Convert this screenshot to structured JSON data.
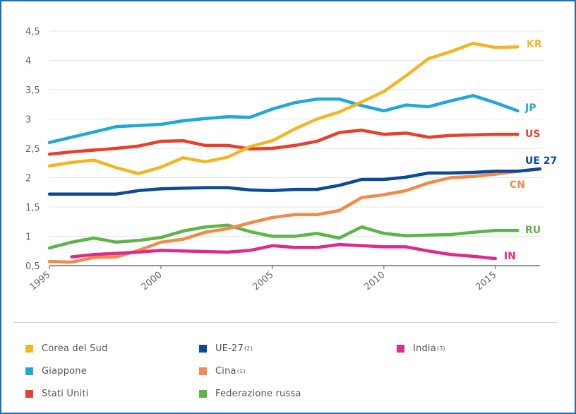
{
  "chart_data": {
    "type": "line",
    "x_ticks": [
      1995,
      2000,
      2005,
      2010,
      2015
    ],
    "y_ticks": [
      0.5,
      1,
      1.5,
      2,
      2.5,
      3,
      3.5,
      4,
      4.5
    ],
    "y_tick_labels": [
      "0,5",
      "1",
      "1,5",
      "2",
      "2,5",
      "3",
      "3,5",
      "4",
      "4,5"
    ],
    "xlim": [
      1995,
      2017
    ],
    "ylim": [
      0.5,
      4.5
    ],
    "grid": "horizontal",
    "series": [
      {
        "name": "Corea del Sud",
        "end_label": "KR",
        "color": "#f5b523",
        "x": [
          1995,
          1996,
          1997,
          1998,
          1999,
          2000,
          2001,
          2002,
          2003,
          2004,
          2005,
          2006,
          2007,
          2008,
          2009,
          2010,
          2011,
          2012,
          2013,
          2014,
          2015,
          2016
        ],
        "y": [
          2.2,
          2.26,
          2.3,
          2.17,
          2.07,
          2.18,
          2.34,
          2.27,
          2.35,
          2.53,
          2.63,
          2.83,
          3.0,
          3.12,
          3.29,
          3.47,
          3.74,
          4.03,
          4.15,
          4.29,
          4.22,
          4.23
        ]
      },
      {
        "name": "Giappone",
        "end_label": "JP",
        "color": "#1fa8d8",
        "x": [
          1995,
          1996,
          1997,
          1998,
          1999,
          2000,
          2001,
          2002,
          2003,
          2004,
          2005,
          2006,
          2007,
          2008,
          2009,
          2010,
          2011,
          2012,
          2013,
          2014,
          2015,
          2016
        ],
        "y": [
          2.6,
          2.69,
          2.78,
          2.87,
          2.89,
          2.91,
          2.97,
          3.01,
          3.04,
          3.03,
          3.17,
          3.28,
          3.34,
          3.34,
          3.23,
          3.14,
          3.24,
          3.21,
          3.31,
          3.4,
          3.28,
          3.14
        ]
      },
      {
        "name": "Stati Uniti",
        "end_label": "US",
        "color": "#e5412d",
        "x": [
          1995,
          1996,
          1997,
          1998,
          1999,
          2000,
          2001,
          2002,
          2003,
          2004,
          2005,
          2006,
          2007,
          2008,
          2009,
          2010,
          2011,
          2012,
          2013,
          2014,
          2015,
          2016
        ],
        "y": [
          2.4,
          2.44,
          2.47,
          2.5,
          2.54,
          2.62,
          2.63,
          2.55,
          2.55,
          2.49,
          2.5,
          2.55,
          2.62,
          2.77,
          2.81,
          2.74,
          2.76,
          2.69,
          2.72,
          2.73,
          2.74,
          2.74
        ]
      },
      {
        "name": "UE-27",
        "name_sup": "(2)",
        "end_label": "UE 27",
        "color": "#0b4a99",
        "x": [
          1995,
          1996,
          1997,
          1998,
          1999,
          2000,
          2001,
          2002,
          2003,
          2004,
          2005,
          2006,
          2007,
          2008,
          2009,
          2010,
          2011,
          2012,
          2013,
          2014,
          2015,
          2016,
          2017
        ],
        "y": [
          1.72,
          1.72,
          1.72,
          1.72,
          1.78,
          1.81,
          1.82,
          1.83,
          1.83,
          1.79,
          1.78,
          1.8,
          1.8,
          1.87,
          1.97,
          1.97,
          2.01,
          2.08,
          2.08,
          2.09,
          2.11,
          2.11,
          2.15
        ]
      },
      {
        "name": "India",
        "name_sup": "(3)",
        "end_label": "IN",
        "color": "#de2a8a",
        "x": [
          1996,
          1997,
          1998,
          1999,
          2000,
          2001,
          2002,
          2003,
          2004,
          2005,
          2006,
          2007,
          2008,
          2009,
          2010,
          2011,
          2012,
          2013,
          2014,
          2015
        ],
        "y": [
          0.65,
          0.69,
          0.71,
          0.73,
          0.76,
          0.75,
          0.74,
          0.73,
          0.76,
          0.84,
          0.81,
          0.81,
          0.86,
          0.84,
          0.82,
          0.82,
          0.75,
          0.69,
          0.66,
          0.62
        ]
      },
      {
        "name": "Cina",
        "name_sup": "(1)",
        "end_label": "CN",
        "color": "#f28a4a",
        "x": [
          1995,
          1996,
          1997,
          1998,
          1999,
          2000,
          2001,
          2002,
          2003,
          2004,
          2005,
          2006,
          2007,
          2008,
          2009,
          2010,
          2011,
          2012,
          2013,
          2014,
          2015,
          2016
        ],
        "y": [
          0.57,
          0.56,
          0.64,
          0.65,
          0.76,
          0.9,
          0.95,
          1.07,
          1.13,
          1.23,
          1.32,
          1.37,
          1.37,
          1.44,
          1.66,
          1.71,
          1.78,
          1.91,
          2.0,
          2.02,
          2.06,
          2.11
        ]
      },
      {
        "name": "Federazione russa",
        "end_label": "RU",
        "color": "#5bb548",
        "x": [
          1995,
          1996,
          1997,
          1998,
          1999,
          2000,
          2001,
          2002,
          2003,
          2004,
          2005,
          2006,
          2007,
          2008,
          2009,
          2010,
          2011,
          2012,
          2013,
          2014,
          2015,
          2016
        ],
        "y": [
          0.8,
          0.9,
          0.97,
          0.9,
          0.93,
          0.98,
          1.09,
          1.16,
          1.19,
          1.08,
          1.0,
          1.0,
          1.05,
          0.97,
          1.16,
          1.05,
          1.01,
          1.02,
          1.03,
          1.07,
          1.1,
          1.1
        ]
      }
    ]
  }
}
